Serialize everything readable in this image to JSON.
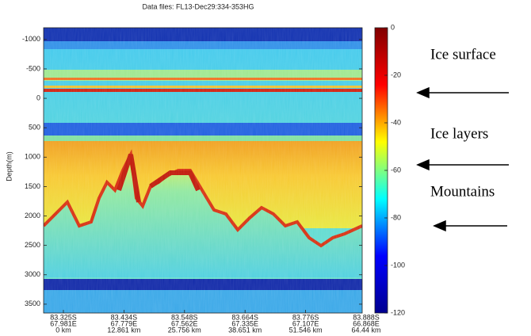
{
  "chart_data": {
    "type": "echogram",
    "title": "Data files: FL13-Dec29:334-353HG",
    "ylabel": "Depth(m)",
    "ylim": [
      -1200,
      3650
    ],
    "y_inverted": true,
    "yticks": [
      -1000,
      -500,
      0,
      500,
      1000,
      1500,
      2000,
      2500,
      3000,
      3500
    ],
    "categories": [
      [
        "83.325S",
        "67.981E",
        "0 km"
      ],
      [
        "83.434S",
        "67.779E",
        "12.861 km"
      ],
      [
        "83.548S",
        "67.562E",
        "25.756 km"
      ],
      [
        "83.664S",
        "67.335E",
        "38.651 km"
      ],
      [
        "83.776S",
        "67.107E",
        "51.546 km"
      ],
      [
        "83.888S",
        "66.868E",
        "64.44 km"
      ]
    ],
    "colorbar": {
      "clim": [
        -120,
        0
      ],
      "ticks": [
        0,
        -20,
        -40,
        -60,
        -80,
        -100,
        -120
      ],
      "colormap": "jet"
    },
    "annotations": [
      "Ice surface",
      "Ice layers",
      "Mountains"
    ]
  }
}
